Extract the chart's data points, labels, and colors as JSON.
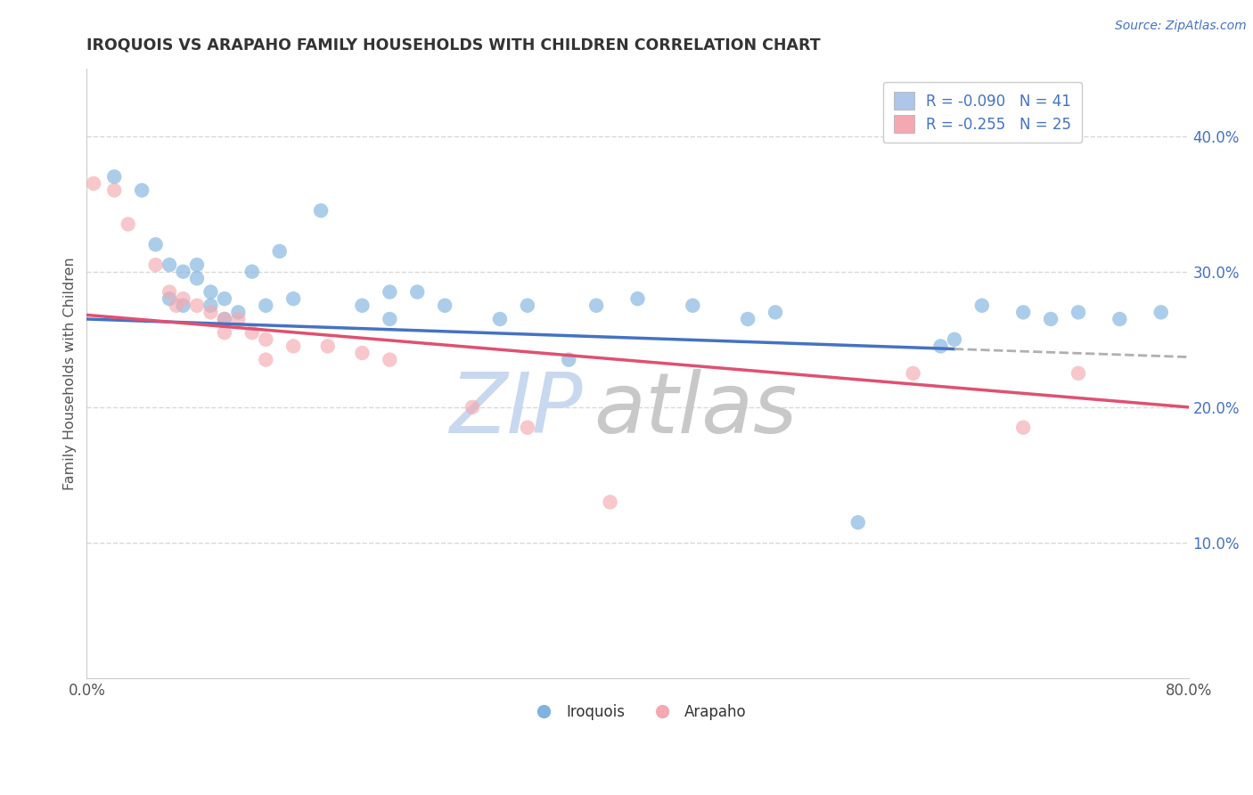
{
  "title": "IROQUOIS VS ARAPAHO FAMILY HOUSEHOLDS WITH CHILDREN CORRELATION CHART",
  "source_text": "Source: ZipAtlas.com",
  "ylabel": "Family Households with Children",
  "xlim": [
    0.0,
    0.8
  ],
  "ylim": [
    0.0,
    0.45
  ],
  "xticks": [
    0.0,
    0.1,
    0.2,
    0.3,
    0.4,
    0.5,
    0.6,
    0.7,
    0.8
  ],
  "xticklabels": [
    "0.0%",
    "",
    "",
    "",
    "",
    "",
    "",
    "",
    "80.0%"
  ],
  "yticks_right": [
    0.1,
    0.2,
    0.3,
    0.4
  ],
  "ytick_right_labels": [
    "10.0%",
    "20.0%",
    "30.0%",
    "40.0%"
  ],
  "legend_blue_label": "R = -0.090   N = 41",
  "legend_pink_label": "R = -0.255   N = 25",
  "legend_blue_color": "#aec6e8",
  "legend_pink_color": "#f4a9b0",
  "scatter_blue_color": "#7fb3e0",
  "scatter_pink_color": "#f4a9b0",
  "trend_blue_color": "#4472c4",
  "trend_pink_color": "#e05070",
  "trend_dashed_color": "#b0b0b0",
  "watermark_blue": "ZIP",
  "watermark_gray": "atlas",
  "watermark_blue_color": "#c8d8ee",
  "watermark_gray_color": "#c8c8c8",
  "iroquois_x": [
    0.02,
    0.04,
    0.05,
    0.06,
    0.06,
    0.07,
    0.07,
    0.08,
    0.08,
    0.09,
    0.09,
    0.1,
    0.1,
    0.11,
    0.12,
    0.13,
    0.14,
    0.15,
    0.17,
    0.2,
    0.22,
    0.22,
    0.24,
    0.26,
    0.3,
    0.32,
    0.35,
    0.37,
    0.4,
    0.44,
    0.48,
    0.5,
    0.56,
    0.62,
    0.63,
    0.65,
    0.68,
    0.7,
    0.72,
    0.75,
    0.78
  ],
  "iroquois_y": [
    0.37,
    0.36,
    0.32,
    0.305,
    0.28,
    0.3,
    0.275,
    0.305,
    0.295,
    0.285,
    0.275,
    0.28,
    0.265,
    0.27,
    0.3,
    0.275,
    0.315,
    0.28,
    0.345,
    0.275,
    0.285,
    0.265,
    0.285,
    0.275,
    0.265,
    0.275,
    0.235,
    0.275,
    0.28,
    0.275,
    0.265,
    0.27,
    0.115,
    0.245,
    0.25,
    0.275,
    0.27,
    0.265,
    0.27,
    0.265,
    0.27
  ],
  "arapaho_x": [
    0.005,
    0.02,
    0.03,
    0.05,
    0.06,
    0.065,
    0.07,
    0.08,
    0.09,
    0.1,
    0.1,
    0.11,
    0.12,
    0.13,
    0.13,
    0.15,
    0.175,
    0.2,
    0.22,
    0.28,
    0.32,
    0.38,
    0.6,
    0.68,
    0.72
  ],
  "arapaho_y": [
    0.365,
    0.36,
    0.335,
    0.305,
    0.285,
    0.275,
    0.28,
    0.275,
    0.27,
    0.265,
    0.255,
    0.265,
    0.255,
    0.25,
    0.235,
    0.245,
    0.245,
    0.24,
    0.235,
    0.2,
    0.185,
    0.13,
    0.225,
    0.185,
    0.225
  ],
  "trend_blue_x_start": 0.0,
  "trend_blue_x_solid_end": 0.63,
  "trend_blue_x_end": 0.8,
  "trend_blue_y_start": 0.265,
  "trend_blue_y_end": 0.237,
  "trend_pink_x_start": 0.0,
  "trend_pink_x_end": 0.8,
  "trend_pink_y_start": 0.268,
  "trend_pink_y_end": 0.2,
  "background_color": "#ffffff",
  "grid_color": "#d8d8d8",
  "figsize": [
    14.06,
    8.92
  ],
  "dpi": 100
}
